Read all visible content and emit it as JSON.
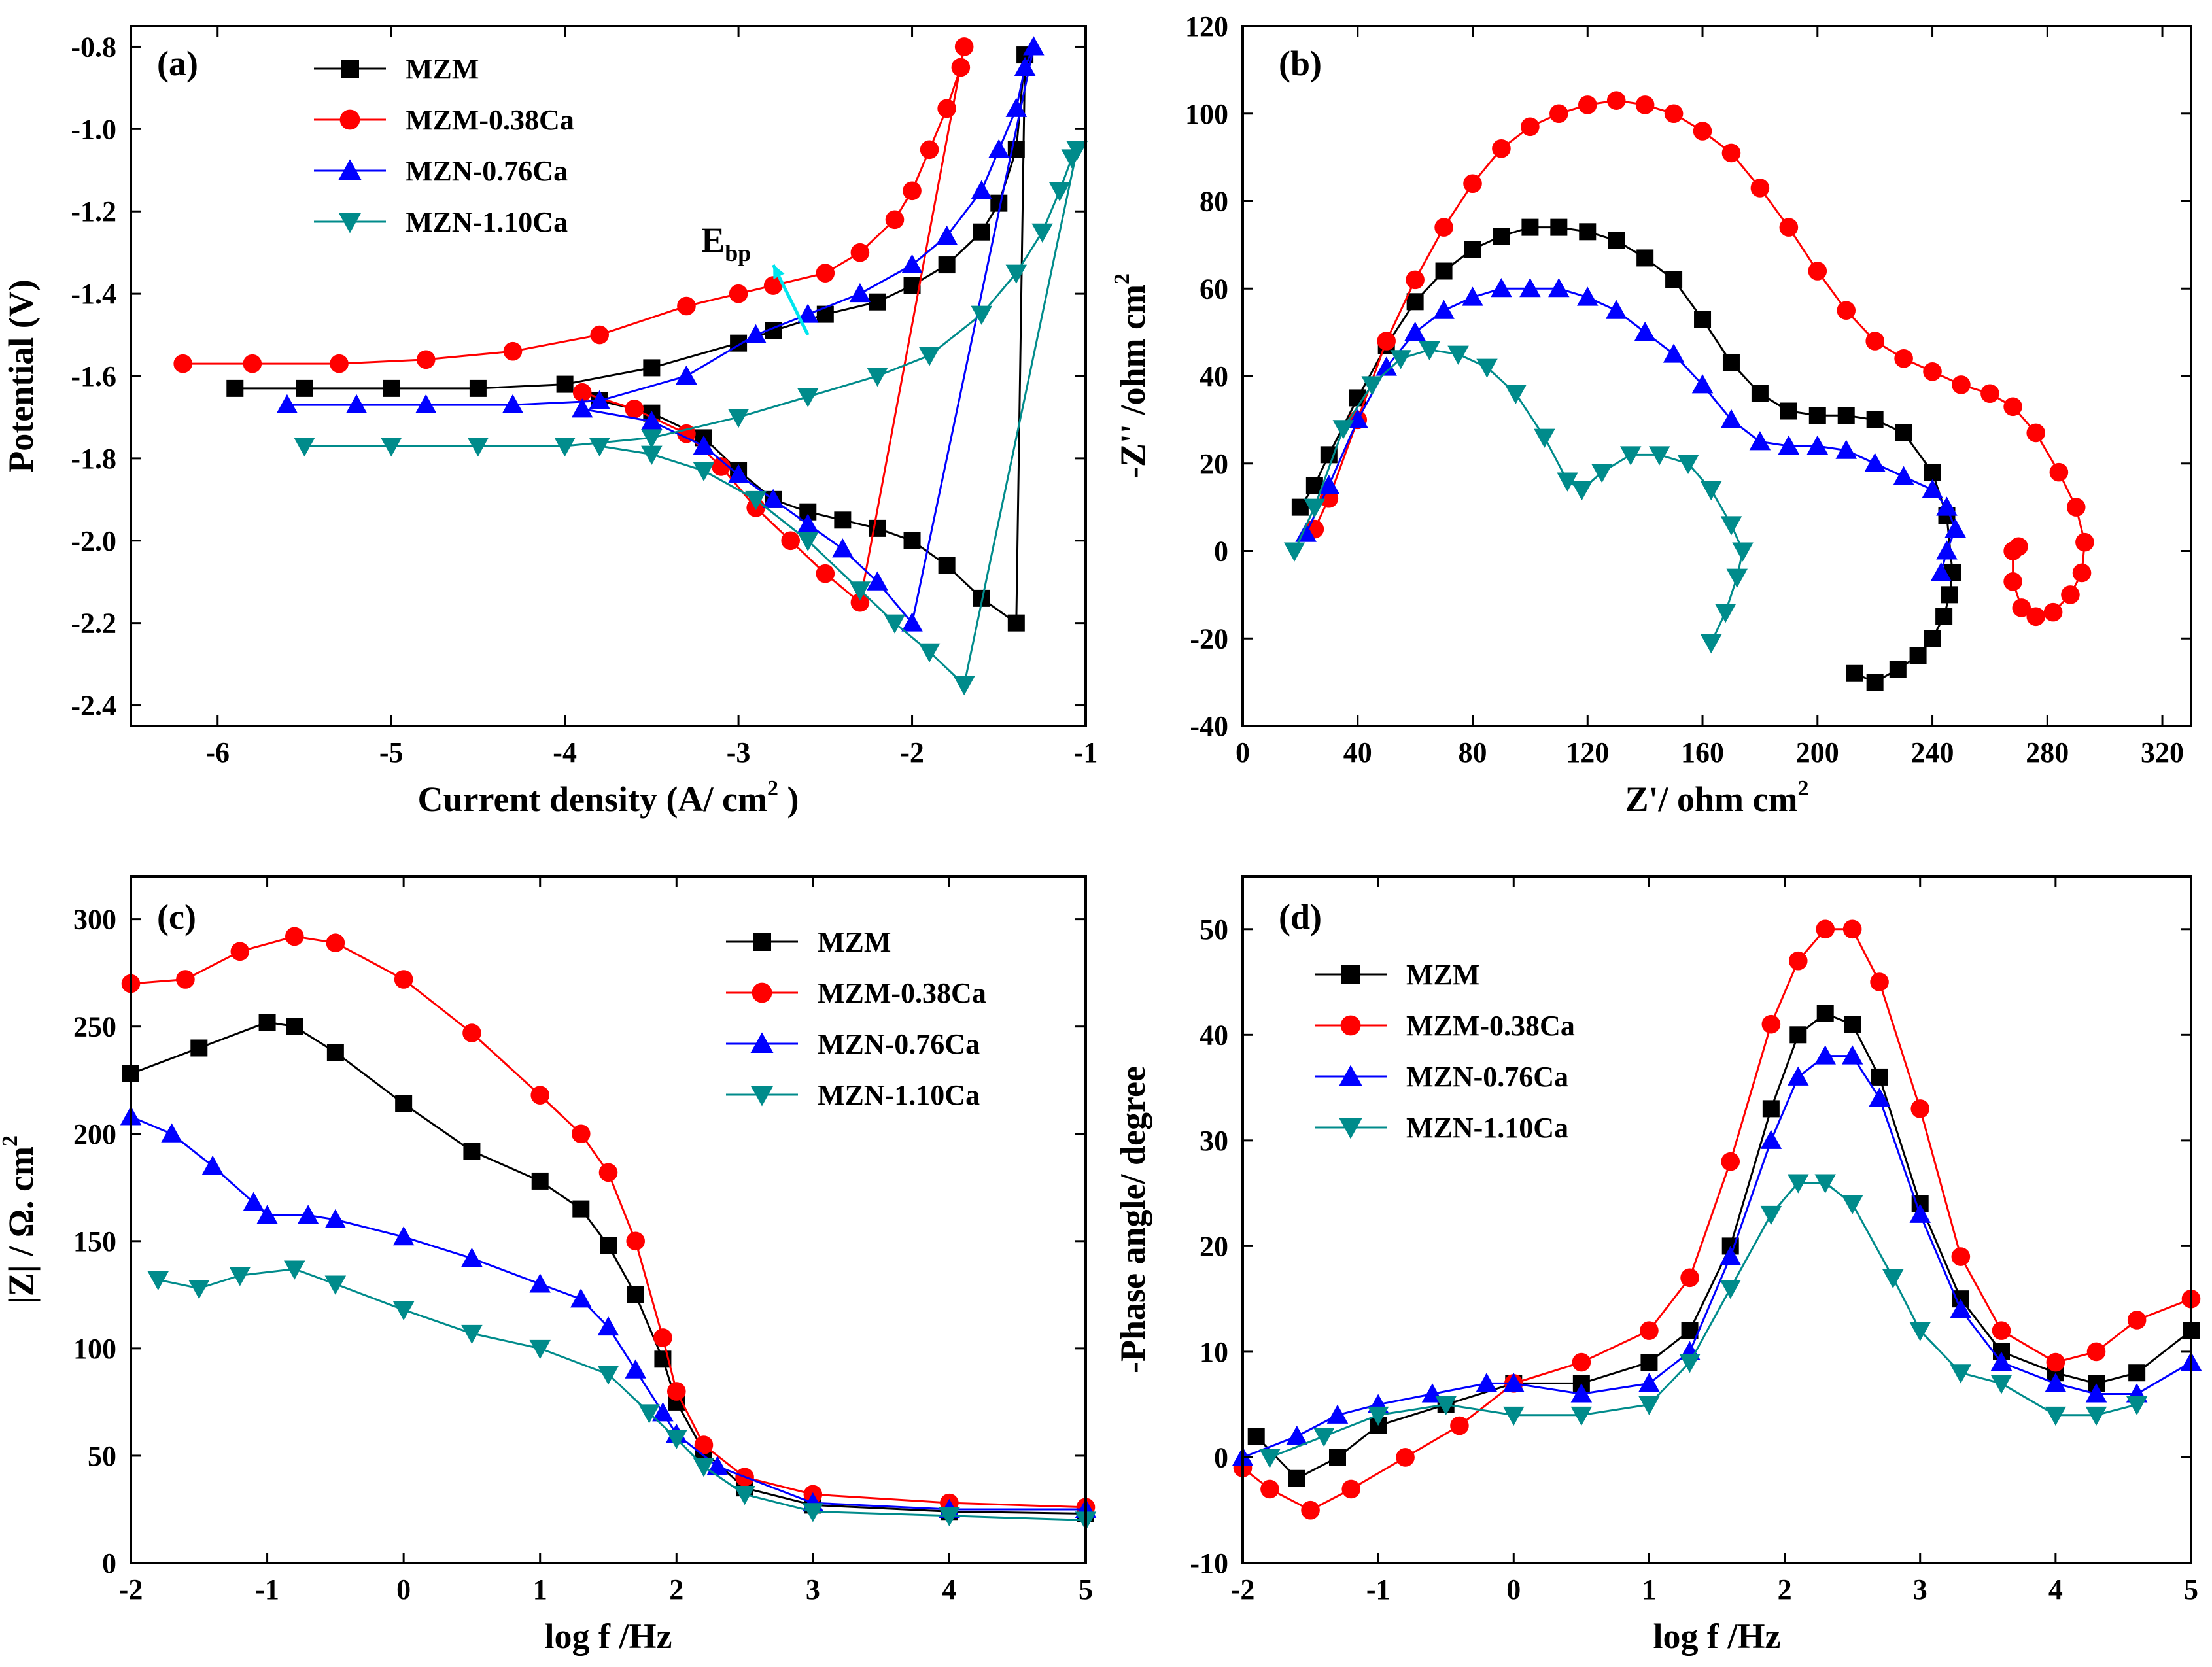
{
  "chart_data": [
    {
      "id": "a",
      "type": "line",
      "panel_label": "(a)",
      "xlabel": "Current density (A/ cm",
      "xlabel_sup": "2",
      "xlabel_end": ")",
      "ylabel": "Potential (V)",
      "xlim": [
        -6.5,
        -1
      ],
      "ylim": [
        -2.45,
        -0.75
      ],
      "xticks": [
        -6,
        -5,
        -4,
        -3,
        -2,
        -1
      ],
      "yticks": [
        -2.4,
        -2.2,
        -2.0,
        -1.8,
        -1.6,
        -1.4,
        -1.2,
        -1.0,
        -0.8
      ],
      "ytick_decimals": 1,
      "annotation": {
        "text": "E",
        "sub": "bp",
        "arrow_from": [
          -2.6,
          -1.5
        ],
        "arrow_to": [
          -2.8,
          -1.33
        ]
      },
      "series": [
        {
          "name": "MZM",
          "color": "#000000",
          "marker": "square",
          "x": [
            -5.9,
            -5.5,
            -5.0,
            -4.5,
            -4.0,
            -3.5,
            -3.0,
            -2.8,
            -2.5,
            -2.2,
            -2.0,
            -1.8,
            -1.6,
            -1.5,
            -1.4,
            -1.35,
            -1.4,
            -1.6,
            -1.8,
            -2.0,
            -2.2,
            -2.4,
            -2.6,
            -2.8,
            -3.0,
            -3.2,
            -3.5,
            -3.8
          ],
          "y": [
            -1.63,
            -1.63,
            -1.63,
            -1.63,
            -1.62,
            -1.58,
            -1.52,
            -1.49,
            -1.45,
            -1.42,
            -1.38,
            -1.33,
            -1.25,
            -1.18,
            -1.05,
            -0.82,
            -2.2,
            -2.14,
            -2.06,
            -2.0,
            -1.97,
            -1.95,
            -1.93,
            -1.9,
            -1.83,
            -1.75,
            -1.69,
            -1.66
          ]
        },
        {
          "name": "MZM-0.38Ca",
          "color": "#ff0000",
          "marker": "circle",
          "x": [
            -6.2,
            -5.8,
            -5.3,
            -4.8,
            -4.3,
            -3.8,
            -3.3,
            -3.0,
            -2.8,
            -2.5,
            -2.3,
            -2.1,
            -2.0,
            -1.9,
            -1.8,
            -1.72,
            -1.7,
            -2.3,
            -2.5,
            -2.7,
            -2.9,
            -3.1,
            -3.3,
            -3.6,
            -3.9
          ],
          "y": [
            -1.57,
            -1.57,
            -1.57,
            -1.56,
            -1.54,
            -1.5,
            -1.43,
            -1.4,
            -1.38,
            -1.35,
            -1.3,
            -1.22,
            -1.15,
            -1.05,
            -0.95,
            -0.85,
            -0.8,
            -2.15,
            -2.08,
            -2.0,
            -1.92,
            -1.82,
            -1.74,
            -1.68,
            -1.64
          ]
        },
        {
          "name": "MZN-0.76Ca",
          "color": "#0000ff",
          "marker": "triangle-up",
          "x": [
            -5.6,
            -5.2,
            -4.8,
            -4.3,
            -3.8,
            -3.3,
            -2.9,
            -2.6,
            -2.3,
            -2.0,
            -1.8,
            -1.6,
            -1.5,
            -1.4,
            -1.35,
            -1.3,
            -2.0,
            -2.2,
            -2.4,
            -2.6,
            -2.8,
            -3.0,
            -3.2,
            -3.5,
            -3.9
          ],
          "y": [
            -1.67,
            -1.67,
            -1.67,
            -1.67,
            -1.66,
            -1.6,
            -1.5,
            -1.45,
            -1.4,
            -1.33,
            -1.26,
            -1.15,
            -1.05,
            -0.95,
            -0.85,
            -0.8,
            -2.2,
            -2.1,
            -2.02,
            -1.96,
            -1.9,
            -1.84,
            -1.77,
            -1.71,
            -1.68
          ]
        },
        {
          "name": "MZN-1.10Ca",
          "color": "#008b8b",
          "marker": "triangle-down",
          "x": [
            -5.5,
            -5.0,
            -4.5,
            -4.0,
            -3.5,
            -3.0,
            -2.6,
            -2.2,
            -1.9,
            -1.6,
            -1.4,
            -1.25,
            -1.15,
            -1.08,
            -1.05,
            -1.7,
            -1.9,
            -2.1,
            -2.3,
            -2.6,
            -2.9,
            -3.2,
            -3.5,
            -3.8
          ],
          "y": [
            -1.77,
            -1.77,
            -1.77,
            -1.77,
            -1.75,
            -1.7,
            -1.65,
            -1.6,
            -1.55,
            -1.45,
            -1.35,
            -1.25,
            -1.15,
            -1.07,
            -1.05,
            -2.35,
            -2.27,
            -2.2,
            -2.12,
            -2.0,
            -1.9,
            -1.83,
            -1.79,
            -1.77
          ]
        }
      ]
    },
    {
      "id": "b",
      "type": "line",
      "panel_label": "(b)",
      "xlabel": "Z'/ ohm cm",
      "xlabel_sup": "2",
      "xlabel_end": "",
      "ylabel": "-Z'' /ohm cm",
      "ylabel_sup": "2",
      "xlim": [
        0,
        330
      ],
      "ylim": [
        -40,
        120
      ],
      "xticks": [
        0,
        40,
        80,
        120,
        160,
        200,
        240,
        280,
        320
      ],
      "yticks": [
        -40,
        -20,
        0,
        20,
        40,
        60,
        80,
        100,
        120
      ],
      "ytick_decimals": 0,
      "series": [
        {
          "name": "MZM",
          "color": "#000000",
          "marker": "square",
          "x": [
            20,
            25,
            30,
            40,
            50,
            60,
            70,
            80,
            90,
            100,
            110,
            120,
            130,
            140,
            150,
            160,
            170,
            180,
            190,
            200,
            210,
            220,
            230,
            240,
            245,
            247,
            246,
            244,
            240,
            235,
            228,
            220,
            213
          ],
          "y": [
            10,
            15,
            22,
            35,
            47,
            57,
            64,
            69,
            72,
            74,
            74,
            73,
            71,
            67,
            62,
            53,
            43,
            36,
            32,
            31,
            31,
            30,
            27,
            18,
            8,
            -5,
            -10,
            -15,
            -20,
            -24,
            -27,
            -30,
            -28
          ]
        },
        {
          "name": "MZM-0.38Ca",
          "color": "#ff0000",
          "marker": "circle",
          "x": [
            25,
            30,
            40,
            50,
            60,
            70,
            80,
            90,
            100,
            110,
            120,
            130,
            140,
            150,
            160,
            170,
            180,
            190,
            200,
            210,
            220,
            230,
            240,
            250,
            260,
            268,
            276,
            284,
            290,
            293,
            292,
            288,
            282,
            276,
            271,
            268,
            268,
            270
          ],
          "y": [
            5,
            12,
            30,
            48,
            62,
            74,
            84,
            92,
            97,
            100,
            102,
            103,
            102,
            100,
            96,
            91,
            83,
            74,
            64,
            55,
            48,
            44,
            41,
            38,
            36,
            33,
            27,
            18,
            10,
            2,
            -5,
            -10,
            -14,
            -15,
            -13,
            -7,
            0,
            1
          ]
        },
        {
          "name": "MZN-0.76Ca",
          "color": "#0000ff",
          "marker": "triangle-up",
          "x": [
            22,
            30,
            40,
            50,
            60,
            70,
            80,
            90,
            100,
            110,
            120,
            130,
            140,
            150,
            160,
            170,
            180,
            190,
            200,
            210,
            220,
            230,
            240,
            245,
            248,
            245,
            243
          ],
          "y": [
            4,
            15,
            30,
            42,
            50,
            55,
            58,
            60,
            60,
            60,
            58,
            55,
            50,
            45,
            38,
            30,
            25,
            24,
            24,
            23,
            20,
            17,
            14,
            10,
            5,
            0,
            -5
          ]
        },
        {
          "name": "MZN-1.10Ca",
          "color": "#008b8b",
          "marker": "triangle-down",
          "x": [
            18,
            25,
            35,
            45,
            55,
            65,
            75,
            85,
            95,
            105,
            113,
            118,
            125,
            135,
            145,
            155,
            163,
            170,
            174,
            172,
            168,
            163
          ],
          "y": [
            0,
            10,
            28,
            38,
            44,
            46,
            45,
            42,
            36,
            26,
            16,
            14,
            18,
            22,
            22,
            20,
            14,
            6,
            0,
            -6,
            -14,
            -21
          ]
        }
      ]
    },
    {
      "id": "c",
      "type": "line",
      "panel_label": "(c)",
      "xlabel": "log f  /Hz",
      "ylabel": "|Z| / Ω. cm",
      "ylabel_sup": "2",
      "xlim": [
        -2,
        5
      ],
      "ylim": [
        0,
        320
      ],
      "xticks": [
        -2,
        -1,
        0,
        1,
        2,
        3,
        4,
        5
      ],
      "yticks": [
        0,
        50,
        100,
        150,
        200,
        250,
        300
      ],
      "ytick_decimals": 0,
      "series": [
        {
          "name": "MZM",
          "color": "#000000",
          "marker": "square",
          "x": [
            -2,
            -1.5,
            -1,
            -0.8,
            -0.5,
            0,
            0.5,
            1,
            1.3,
            1.5,
            1.7,
            1.9,
            2.0,
            2.2,
            2.5,
            3,
            4,
            5
          ],
          "y": [
            228,
            240,
            252,
            250,
            238,
            214,
            192,
            178,
            165,
            148,
            125,
            95,
            75,
            52,
            35,
            27,
            24,
            23
          ]
        },
        {
          "name": "MZM-0.38Ca",
          "color": "#ff0000",
          "marker": "circle",
          "x": [
            -2,
            -1.6,
            -1.2,
            -0.8,
            -0.5,
            0,
            0.5,
            1,
            1.3,
            1.5,
            1.7,
            1.9,
            2.0,
            2.2,
            2.5,
            3,
            4,
            5
          ],
          "y": [
            270,
            272,
            285,
            292,
            289,
            272,
            247,
            218,
            200,
            182,
            150,
            105,
            80,
            55,
            40,
            32,
            28,
            26
          ]
        },
        {
          "name": "MZN-0.76Ca",
          "color": "#0000ff",
          "marker": "triangle-up",
          "x": [
            -2,
            -1.7,
            -1.4,
            -1.1,
            -1,
            -0.7,
            -0.5,
            0,
            0.5,
            1,
            1.3,
            1.5,
            1.7,
            1.9,
            2.0,
            2.3,
            3,
            4,
            5
          ],
          "y": [
            208,
            200,
            185,
            168,
            162,
            162,
            160,
            152,
            142,
            130,
            123,
            110,
            90,
            70,
            60,
            45,
            28,
            25,
            25
          ]
        },
        {
          "name": "MZN-1.10Ca",
          "color": "#008b8b",
          "marker": "triangle-down",
          "x": [
            -1.8,
            -1.5,
            -1.2,
            -0.8,
            -0.5,
            0,
            0.5,
            1,
            1.5,
            1.8,
            2.0,
            2.2,
            2.5,
            3,
            4,
            5
          ],
          "y": [
            132,
            128,
            134,
            137,
            130,
            118,
            107,
            100,
            88,
            70,
            58,
            45,
            32,
            24,
            22,
            20
          ]
        }
      ]
    },
    {
      "id": "d",
      "type": "line",
      "panel_label": "(d)",
      "xlabel": "log f  /Hz",
      "ylabel": "-Phase angle/ degree",
      "xlim": [
        -2,
        5
      ],
      "ylim": [
        -10,
        55
      ],
      "xticks": [
        -2,
        -1,
        0,
        1,
        2,
        3,
        4,
        5
      ],
      "yticks": [
        -10,
        0,
        10,
        20,
        30,
        40,
        50
      ],
      "ytick_decimals": 0,
      "series": [
        {
          "name": "MZM",
          "color": "#000000",
          "marker": "square",
          "x": [
            -1.9,
            -1.6,
            -1.3,
            -1,
            -0.5,
            0,
            0.5,
            1,
            1.3,
            1.6,
            1.9,
            2.1,
            2.3,
            2.5,
            2.7,
            3,
            3.3,
            3.6,
            4,
            4.3,
            4.6,
            5
          ],
          "y": [
            2,
            -2,
            0,
            3,
            5,
            7,
            7,
            9,
            12,
            20,
            33,
            40,
            42,
            41,
            36,
            24,
            15,
            10,
            8,
            7,
            8,
            12
          ]
        },
        {
          "name": "MZM-0.38Ca",
          "color": "#ff0000",
          "marker": "circle",
          "x": [
            -2,
            -1.8,
            -1.5,
            -1.2,
            -0.8,
            -0.4,
            0,
            0.5,
            1,
            1.3,
            1.6,
            1.9,
            2.1,
            2.3,
            2.5,
            2.7,
            3,
            3.3,
            3.6,
            4,
            4.3,
            4.6,
            5
          ],
          "y": [
            -1,
            -3,
            -5,
            -3,
            0,
            3,
            7,
            9,
            12,
            17,
            28,
            41,
            47,
            50,
            50,
            45,
            33,
            19,
            12,
            9,
            10,
            13,
            15
          ]
        },
        {
          "name": "MZN-0.76Ca",
          "color": "#0000ff",
          "marker": "triangle-up",
          "x": [
            -2,
            -1.6,
            -1.3,
            -1,
            -0.6,
            -0.2,
            0,
            0.5,
            1,
            1.3,
            1.6,
            1.9,
            2.1,
            2.3,
            2.5,
            2.7,
            3,
            3.3,
            3.6,
            4,
            4.3,
            4.6,
            5
          ],
          "y": [
            0,
            2,
            4,
            5,
            6,
            7,
            7,
            6,
            7,
            10,
            19,
            30,
            36,
            38,
            38,
            34,
            23,
            14,
            9,
            7,
            6,
            6,
            9
          ]
        },
        {
          "name": "MZN-1.10Ca",
          "color": "#008b8b",
          "marker": "triangle-down",
          "x": [
            -1.8,
            -1.4,
            -1,
            -0.5,
            0,
            0.5,
            1,
            1.3,
            1.6,
            1.9,
            2.1,
            2.3,
            2.5,
            2.8,
            3,
            3.3,
            3.6,
            4,
            4.3,
            4.6
          ],
          "y": [
            0,
            2,
            4,
            5,
            4,
            4,
            5,
            9,
            16,
            23,
            26,
            26,
            24,
            17,
            12,
            8,
            7,
            4,
            4,
            5
          ]
        }
      ]
    }
  ]
}
